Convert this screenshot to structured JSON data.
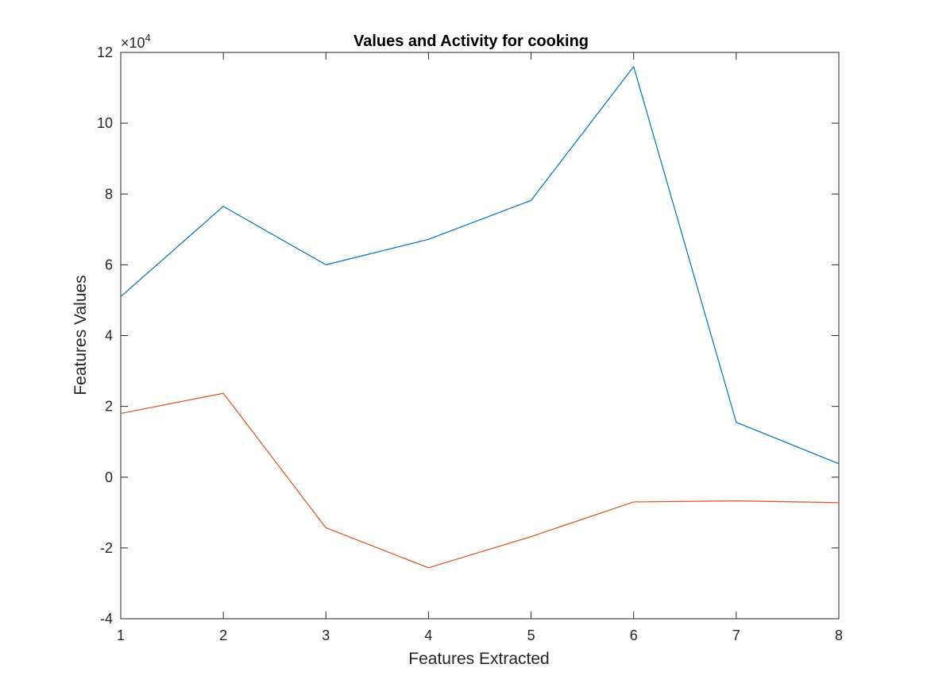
{
  "chart_data": {
    "type": "line",
    "title": "Values and Activity  for cooking",
    "xlabel": "Features Extracted",
    "ylabel": "Features Values",
    "x": [
      1,
      2,
      3,
      4,
      5,
      6,
      7,
      8
    ],
    "xlim": [
      1,
      8
    ],
    "ylim": [
      -40000,
      120000
    ],
    "xticks": [
      1,
      2,
      3,
      4,
      5,
      6,
      7,
      8
    ],
    "yticks": [
      -4,
      -2,
      0,
      2,
      4,
      6,
      8,
      10,
      12
    ],
    "y_multiplier_base": "×10",
    "y_multiplier_exp": "4",
    "grid": false,
    "series": [
      {
        "values": [
          51000,
          76500,
          60000,
          67200,
          78200,
          116000,
          15500,
          3800
        ],
        "color": "#0072bd"
      },
      {
        "values": [
          18000,
          23700,
          -14300,
          -25600,
          -16800,
          -7000,
          -6700,
          -7200
        ],
        "color": "#d95319"
      }
    ]
  }
}
